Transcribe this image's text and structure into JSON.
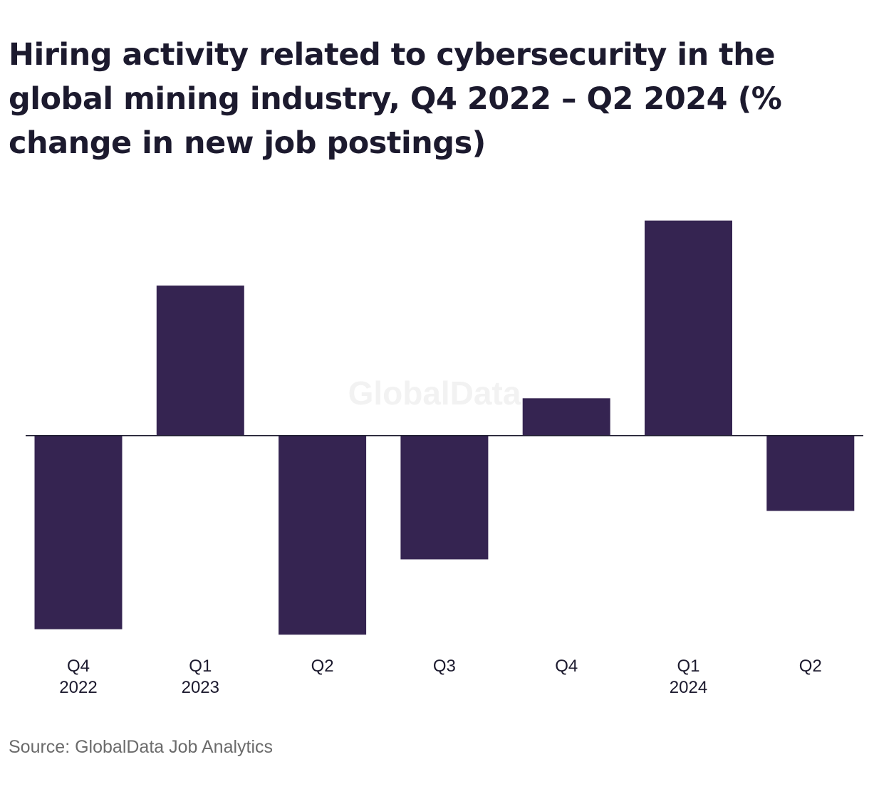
{
  "title": "Hiring activity related to cybersecurity in the global mining industry, Q4 2022 – Q2 2024 (% change in new job postings)",
  "watermark": "GlobalData",
  "source": "Source: GlobalData Job Analytics",
  "colors": {
    "bar": "#352451",
    "axis": "#1c1a2e",
    "watermark": "#f2f2f2"
  },
  "chart_data": {
    "type": "bar",
    "categories": [
      {
        "line1": "Q4",
        "line2": "2022"
      },
      {
        "line1": "Q1",
        "line2": "2023"
      },
      {
        "line1": "Q2",
        "line2": ""
      },
      {
        "line1": "Q3",
        "line2": ""
      },
      {
        "line1": "Q4",
        "line2": ""
      },
      {
        "line1": "Q1",
        "line2": "2024"
      },
      {
        "line1": "Q2",
        "line2": ""
      }
    ],
    "values": [
      -28,
      21.7,
      -28.8,
      -17.9,
      5.4,
      31.1,
      -10.9
    ],
    "ylim": [
      -30,
      32
    ],
    "grid": false,
    "baseline": 0
  }
}
